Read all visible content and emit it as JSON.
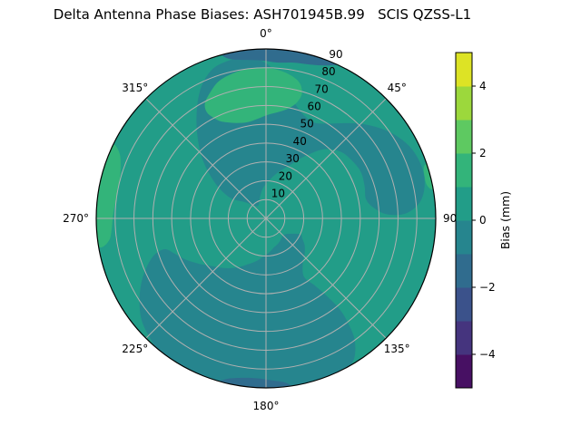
{
  "title": "Delta Antenna Phase Biases: ASH701945B.99   SCIS QZSS-L1",
  "chart_data": {
    "type": "heatmap",
    "projection": "polar",
    "description": "Filled polar contour map of antenna phase bias. Azimuth 0-360 deg clockwise from top; radial coordinate 0-90 (zenith angle). Bias values binned in 1 mm bands of the viridis colormap from -5 to +5 mm. Background sits in the 0..1 mm band, with -1..0 mm depressions spiraling from north-center to the east side and across the south, -2..-1 mm arcs at the north and south rim, and +1..+2 mm patches north-center, west rim and east rim.",
    "title": "Delta Antenna Phase Biases: ASH701945B.99   SCIS QZSS-L1",
    "angular_ticks": [
      {
        "azimuth_deg": 0,
        "label": "0°"
      },
      {
        "azimuth_deg": 45,
        "label": "45°"
      },
      {
        "azimuth_deg": 90,
        "label": "90"
      },
      {
        "azimuth_deg": 135,
        "label": "135°"
      },
      {
        "azimuth_deg": 180,
        "label": "180°"
      },
      {
        "azimuth_deg": 225,
        "label": "225°"
      },
      {
        "azimuth_deg": 270,
        "label": "270°"
      },
      {
        "azimuth_deg": 315,
        "label": "315°"
      }
    ],
    "radial_tick_values": [
      10,
      20,
      30,
      40,
      50,
      60,
      70,
      80,
      90
    ],
    "radial_axis_range": [
      0,
      90
    ],
    "radial_label_azimuth_deg": 22.5,
    "grid_color": "#b0b0b0",
    "axes_edge_color": "#000000",
    "colorbar": {
      "label": "Bias (mm)",
      "value_range": [
        -5,
        5
      ],
      "band_size_mm": 1,
      "tick_values": [
        -4,
        -2,
        0,
        2,
        4
      ],
      "tick_labels": [
        "−4",
        "−2",
        "0",
        "2",
        "4"
      ],
      "band_colors_bottom_to_top": [
        "#471063",
        "#45347e",
        "#3b528b",
        "#306c8e",
        "#26858e",
        "#229d88",
        "#33b47a",
        "#5ec961",
        "#9cd83c",
        "#dde325"
      ]
    },
    "regions": [
      {
        "name": "background",
        "bias_band_mm": "0 to 1",
        "color": "#229d88",
        "points": null
      },
      {
        "name": "north-spiral-depression",
        "bias_band_mm": "-1 to 0",
        "color": "#26858e",
        "points": [
          [
            300,
            22
          ],
          [
            308,
            14
          ],
          [
            318,
            9
          ],
          [
            330,
            8
          ],
          [
            342,
            11
          ],
          [
            354,
            16
          ],
          [
            4,
            20
          ],
          [
            14,
            25
          ],
          [
            24,
            31
          ],
          [
            32,
            39
          ],
          [
            40,
            48
          ],
          [
            48,
            53
          ],
          [
            56,
            55
          ],
          [
            64,
            56
          ],
          [
            72,
            55
          ],
          [
            79,
            54
          ],
          [
            84,
            57
          ],
          [
            88,
            64
          ],
          [
            88,
            74
          ],
          [
            84,
            82
          ],
          [
            78,
            86
          ],
          [
            71,
            87
          ],
          [
            63,
            85
          ],
          [
            55,
            80
          ],
          [
            47,
            73
          ],
          [
            40,
            66
          ],
          [
            33,
            60
          ],
          [
            27,
            57
          ],
          [
            21,
            58
          ],
          [
            15,
            62
          ],
          [
            9,
            70
          ],
          [
            3,
            79
          ],
          [
            358,
            84
          ],
          [
            352,
            86
          ],
          [
            346,
            86
          ],
          [
            340,
            84
          ],
          [
            334,
            78
          ],
          [
            328,
            69
          ],
          [
            321,
            58
          ],
          [
            313,
            46
          ],
          [
            305,
            33
          ]
        ]
      },
      {
        "name": "south-depression",
        "bias_band_mm": "-1 to 0",
        "color": "#26858e",
        "points": [
          [
            115,
            20
          ],
          [
            123,
            15
          ],
          [
            131,
            13
          ],
          [
            139,
            13
          ],
          [
            147,
            14
          ],
          [
            156,
            15
          ],
          [
            165,
            16
          ],
          [
            174,
            18
          ],
          [
            183,
            20
          ],
          [
            192,
            23
          ],
          [
            201,
            26
          ],
          [
            210,
            30
          ],
          [
            219,
            34
          ],
          [
            228,
            38
          ],
          [
            236,
            43
          ],
          [
            243,
            48
          ],
          [
            249,
            52
          ],
          [
            253,
            56
          ],
          [
            252,
            62
          ],
          [
            248,
            68
          ],
          [
            243,
            74
          ],
          [
            237,
            80
          ],
          [
            231,
            85
          ],
          [
            225,
            88
          ],
          [
            218,
            91
          ],
          [
            210,
            92
          ],
          [
            200,
            93
          ],
          [
            190,
            93
          ],
          [
            180,
            93
          ],
          [
            170,
            93
          ],
          [
            161,
            92
          ],
          [
            153,
            91
          ],
          [
            148,
            88
          ],
          [
            144,
            80
          ],
          [
            142,
            71
          ],
          [
            141,
            62
          ],
          [
            142,
            52
          ],
          [
            144,
            44
          ],
          [
            147,
            37
          ],
          [
            141,
            31
          ],
          [
            133,
            28
          ],
          [
            125,
            25
          ],
          [
            119,
            22
          ]
        ]
      },
      {
        "name": "north-rim-low",
        "bias_band_mm": "-2 to -1",
        "color": "#306c8e",
        "points": [
          [
            347,
            87
          ],
          [
            352,
            85
          ],
          [
            358,
            84
          ],
          [
            4,
            83
          ],
          [
            10,
            84
          ],
          [
            16,
            85
          ],
          [
            21,
            87
          ],
          [
            25,
            90
          ],
          [
            27,
            93
          ],
          [
            20,
            95
          ],
          [
            10,
            96
          ],
          [
            0,
            96
          ],
          [
            350,
            95
          ],
          [
            345,
            91
          ]
        ]
      },
      {
        "name": "south-rim-low",
        "bias_band_mm": "-2 to -1",
        "color": "#306c8e",
        "points": [
          [
            173,
            88
          ],
          [
            178,
            86
          ],
          [
            184,
            85
          ],
          [
            190,
            86
          ],
          [
            194,
            88
          ],
          [
            196,
            91
          ],
          [
            192,
            95
          ],
          [
            184,
            96
          ],
          [
            176,
            95
          ],
          [
            171,
            92
          ]
        ]
      },
      {
        "name": "north-high-patch",
        "bias_band_mm": "1 to 2",
        "color": "#33b47a",
        "points": [
          [
            331,
            64
          ],
          [
            334,
            58
          ],
          [
            338,
            55
          ],
          [
            343,
            53
          ],
          [
            349,
            52
          ],
          [
            355,
            53
          ],
          [
            1,
            55
          ],
          [
            7,
            57
          ],
          [
            12,
            60
          ],
          [
            15,
            64
          ],
          [
            16,
            69
          ],
          [
            14,
            74
          ],
          [
            10,
            77
          ],
          [
            5,
            79
          ],
          [
            359,
            80
          ],
          [
            353,
            80
          ],
          [
            347,
            79
          ],
          [
            341,
            77
          ],
          [
            336,
            73
          ],
          [
            332,
            69
          ]
        ]
      },
      {
        "name": "west-rim-high",
        "bias_band_mm": "1 to 2",
        "color": "#33b47a",
        "points": [
          [
            262,
            84
          ],
          [
            266,
            82
          ],
          [
            272,
            81
          ],
          [
            278,
            80
          ],
          [
            284,
            80
          ],
          [
            290,
            82
          ],
          [
            294,
            85
          ],
          [
            296,
            90
          ],
          [
            293,
            94
          ],
          [
            286,
            96
          ],
          [
            278,
            96
          ],
          [
            270,
            96
          ],
          [
            263,
            93
          ],
          [
            260,
            89
          ]
        ]
      },
      {
        "name": "east-rim-high",
        "bias_band_mm": "1 to 2",
        "color": "#33b47a",
        "points": [
          [
            72,
            88
          ],
          [
            75,
            87
          ],
          [
            78,
            87
          ],
          [
            80,
            89
          ],
          [
            80,
            92
          ],
          [
            77,
            94
          ],
          [
            73,
            94
          ],
          [
            71,
            91
          ]
        ]
      }
    ]
  }
}
